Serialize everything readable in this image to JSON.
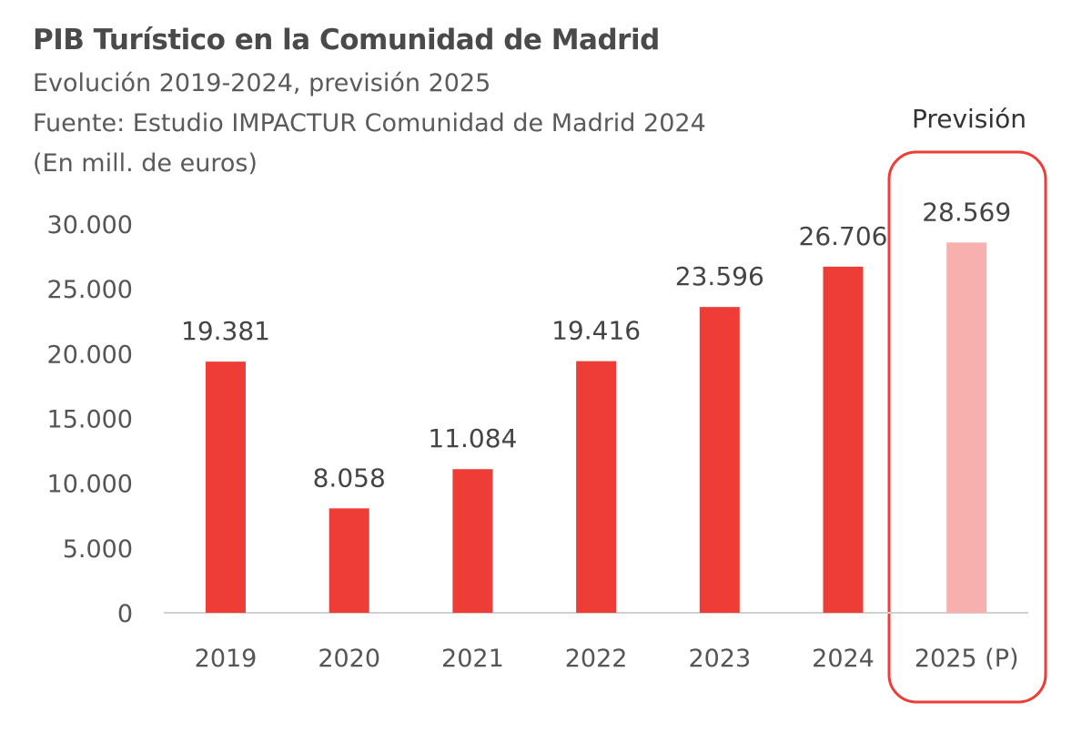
{
  "title": "PIB Turístico en la Comunidad de Madrid",
  "subtitle": "Evolución 2019-2024, previsión 2025",
  "source": "Fuente: Estudio IMPACTUR Comunidad de Madrid 2024",
  "unit": "(En mill. de euros)",
  "forecast_label": "Previsión",
  "colors": {
    "bar": "#ee3d36",
    "forecast_bar": "#f7b0ae",
    "highlight_box": "#ee3d36",
    "text": "#555555"
  },
  "chart_data": {
    "type": "bar",
    "categories": [
      "2019",
      "2020",
      "2021",
      "2022",
      "2023",
      "2024",
      "2025 (P)"
    ],
    "values": [
      19381,
      8058,
      11084,
      19416,
      23596,
      26706,
      28569
    ],
    "data_labels": [
      "19.381",
      "8.058",
      "11.084",
      "19.416",
      "23.596",
      "26.706",
      "28.569"
    ],
    "forecast": [
      false,
      false,
      false,
      false,
      false,
      false,
      true
    ],
    "ylim": [
      0,
      30000
    ],
    "yticks": [
      0,
      5000,
      10000,
      15000,
      20000,
      25000,
      30000
    ],
    "ytick_labels": [
      "0",
      "5.000",
      "10.000",
      "15.000",
      "20.000",
      "25.000",
      "30.000"
    ],
    "grid": false,
    "title": "PIB Turístico en la Comunidad de Madrid"
  }
}
